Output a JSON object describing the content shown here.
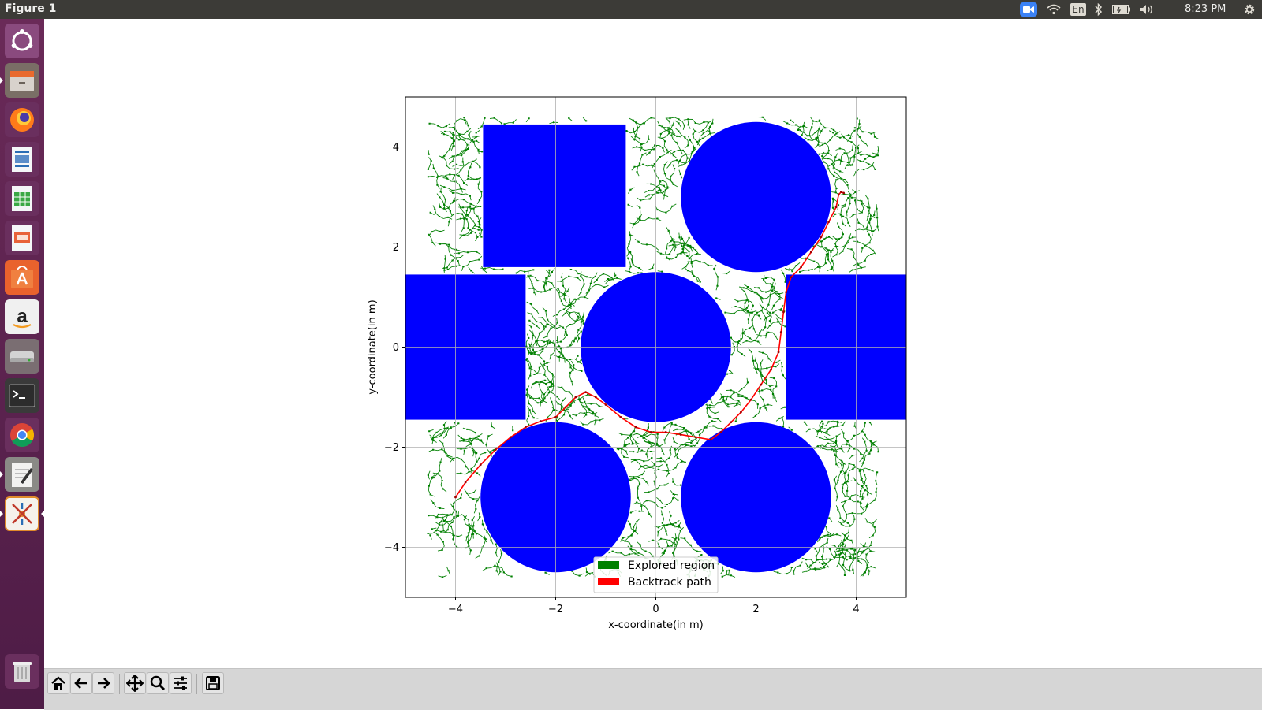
{
  "window": {
    "title": "Figure 1"
  },
  "system_tray": {
    "keyboard_layout": "En",
    "clock": "8:23 PM",
    "icons": [
      "video-camera-icon",
      "wifi-icon",
      "keyboard-layout-icon",
      "bluetooth-icon",
      "battery-icon",
      "volume-icon",
      "settings-gear-icon"
    ]
  },
  "launcher": {
    "items": [
      {
        "name": "ubuntu-dash-icon"
      },
      {
        "name": "files-icon"
      },
      {
        "name": "firefox-icon"
      },
      {
        "name": "libreoffice-writer-icon"
      },
      {
        "name": "libreoffice-calc-icon"
      },
      {
        "name": "libreoffice-impress-icon"
      },
      {
        "name": "software-center-icon"
      },
      {
        "name": "amazon-icon"
      },
      {
        "name": "disk-drive-icon"
      },
      {
        "name": "terminal-icon"
      },
      {
        "name": "chrome-icon"
      },
      {
        "name": "text-editor-icon"
      },
      {
        "name": "system-tools-icon"
      },
      {
        "name": "trash-icon"
      }
    ]
  },
  "toolbar": {
    "buttons": [
      "home-icon",
      "back-arrow-icon",
      "forward-arrow-icon",
      "pan-move-icon",
      "zoom-magnifier-icon",
      "configure-subplots-icon",
      "save-floppy-icon"
    ]
  },
  "colors": {
    "obstacle": "#0000ff",
    "explored": "#008000",
    "path": "#ff0000",
    "launcher": "#5e2750",
    "topbar": "#3c3b37",
    "toolbar": "#d6d6d6"
  },
  "chart_data": {
    "type": "scatter",
    "title": "",
    "xlabel": "x-coordinate(in m)",
    "ylabel": "y-coordinate(in m)",
    "xlim": [
      -5,
      5
    ],
    "ylim": [
      -5,
      5
    ],
    "xticks": [
      -4,
      -2,
      0,
      2,
      4
    ],
    "yticks": [
      -4,
      -2,
      0,
      2,
      4
    ],
    "xtick_labels": [
      "−4",
      "−2",
      "0",
      "2",
      "4"
    ],
    "ytick_labels": [
      "−4",
      "−2",
      "0",
      "2",
      "4"
    ],
    "grid": true,
    "legend_position": "lower center",
    "legend": [
      {
        "label": "Explored region",
        "color": "#008000"
      },
      {
        "label": "Backtrack path",
        "color": "#ff0000"
      }
    ],
    "obstacles": {
      "circles": [
        {
          "cx": 2,
          "cy": 3,
          "r": 1.5
        },
        {
          "cx": 0,
          "cy": 0,
          "r": 1.5
        },
        {
          "cx": -2,
          "cy": -3,
          "r": 1.5
        },
        {
          "cx": 2,
          "cy": -3,
          "r": 1.5
        }
      ],
      "rectangles": [
        {
          "x0": -3.45,
          "y0": 1.6,
          "x1": -0.6,
          "y1": 4.45
        },
        {
          "x0": -5,
          "y0": -1.45,
          "x1": -2.6,
          "y1": 1.45
        },
        {
          "x0": 2.6,
          "y0": -1.45,
          "x1": 5,
          "y1": 1.45
        }
      ]
    },
    "explored_region": {
      "x": [
        -4.55,
        4.45
      ],
      "y": [
        -4.6,
        4.6
      ]
    },
    "backtrack_path": {
      "x": [
        -4.0,
        -3.8,
        -3.5,
        -3.2,
        -2.9,
        -2.6,
        -2.3,
        -2.0,
        -1.8,
        -1.6,
        -1.4,
        -1.2,
        -1.0,
        -0.7,
        -0.4,
        -0.1,
        0.2,
        0.5,
        0.8,
        1.1,
        1.3,
        1.5,
        1.7,
        1.9,
        2.1,
        2.3,
        2.45,
        2.5,
        2.55,
        2.6,
        2.7,
        2.9,
        3.1,
        3.3,
        3.45,
        3.6,
        3.65,
        3.7,
        3.75
      ],
      "y": [
        -3.0,
        -2.7,
        -2.35,
        -2.05,
        -1.8,
        -1.6,
        -1.48,
        -1.4,
        -1.2,
        -1.0,
        -0.9,
        -1.0,
        -1.15,
        -1.4,
        -1.6,
        -1.7,
        -1.7,
        -1.75,
        -1.8,
        -1.85,
        -1.7,
        -1.5,
        -1.3,
        -1.05,
        -0.75,
        -0.45,
        -0.1,
        0.3,
        0.7,
        1.1,
        1.4,
        1.6,
        1.9,
        2.2,
        2.5,
        2.8,
        3.05,
        3.1,
        3.08
      ]
    }
  }
}
